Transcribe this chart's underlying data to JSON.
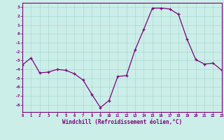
{
  "x": [
    0,
    1,
    2,
    3,
    4,
    5,
    6,
    7,
    8,
    9,
    10,
    11,
    12,
    13,
    14,
    15,
    16,
    17,
    18,
    19,
    20,
    21,
    22,
    23
  ],
  "y": [
    -3.5,
    -2.7,
    -4.4,
    -4.3,
    -4.0,
    -4.1,
    -4.5,
    -5.2,
    -6.8,
    -8.3,
    -7.5,
    -4.8,
    -4.7,
    -1.8,
    0.5,
    2.9,
    2.9,
    2.8,
    2.2,
    -0.6,
    -2.9,
    -3.4,
    -3.3,
    -4.1
  ],
  "xlim": [
    0,
    23
  ],
  "ylim": [
    -8.8,
    3.5
  ],
  "yticks": [
    3,
    2,
    1,
    0,
    -1,
    -2,
    -3,
    -4,
    -5,
    -6,
    -7,
    -8
  ],
  "xticks": [
    0,
    1,
    2,
    3,
    4,
    5,
    6,
    7,
    8,
    9,
    10,
    11,
    12,
    13,
    14,
    15,
    16,
    17,
    18,
    19,
    20,
    21,
    22,
    23
  ],
  "xlabel": "Windchill (Refroidissement éolien,°C)",
  "line_color": "#7b007b",
  "marker_color": "#7b007b",
  "bg_color": "#cceee8",
  "grid_color": "#aad8d2",
  "axis_color": "#7b007b",
  "tick_color": "#7b007b",
  "label_color": "#7b007b",
  "figsize": [
    3.2,
    2.0
  ],
  "dpi": 100
}
